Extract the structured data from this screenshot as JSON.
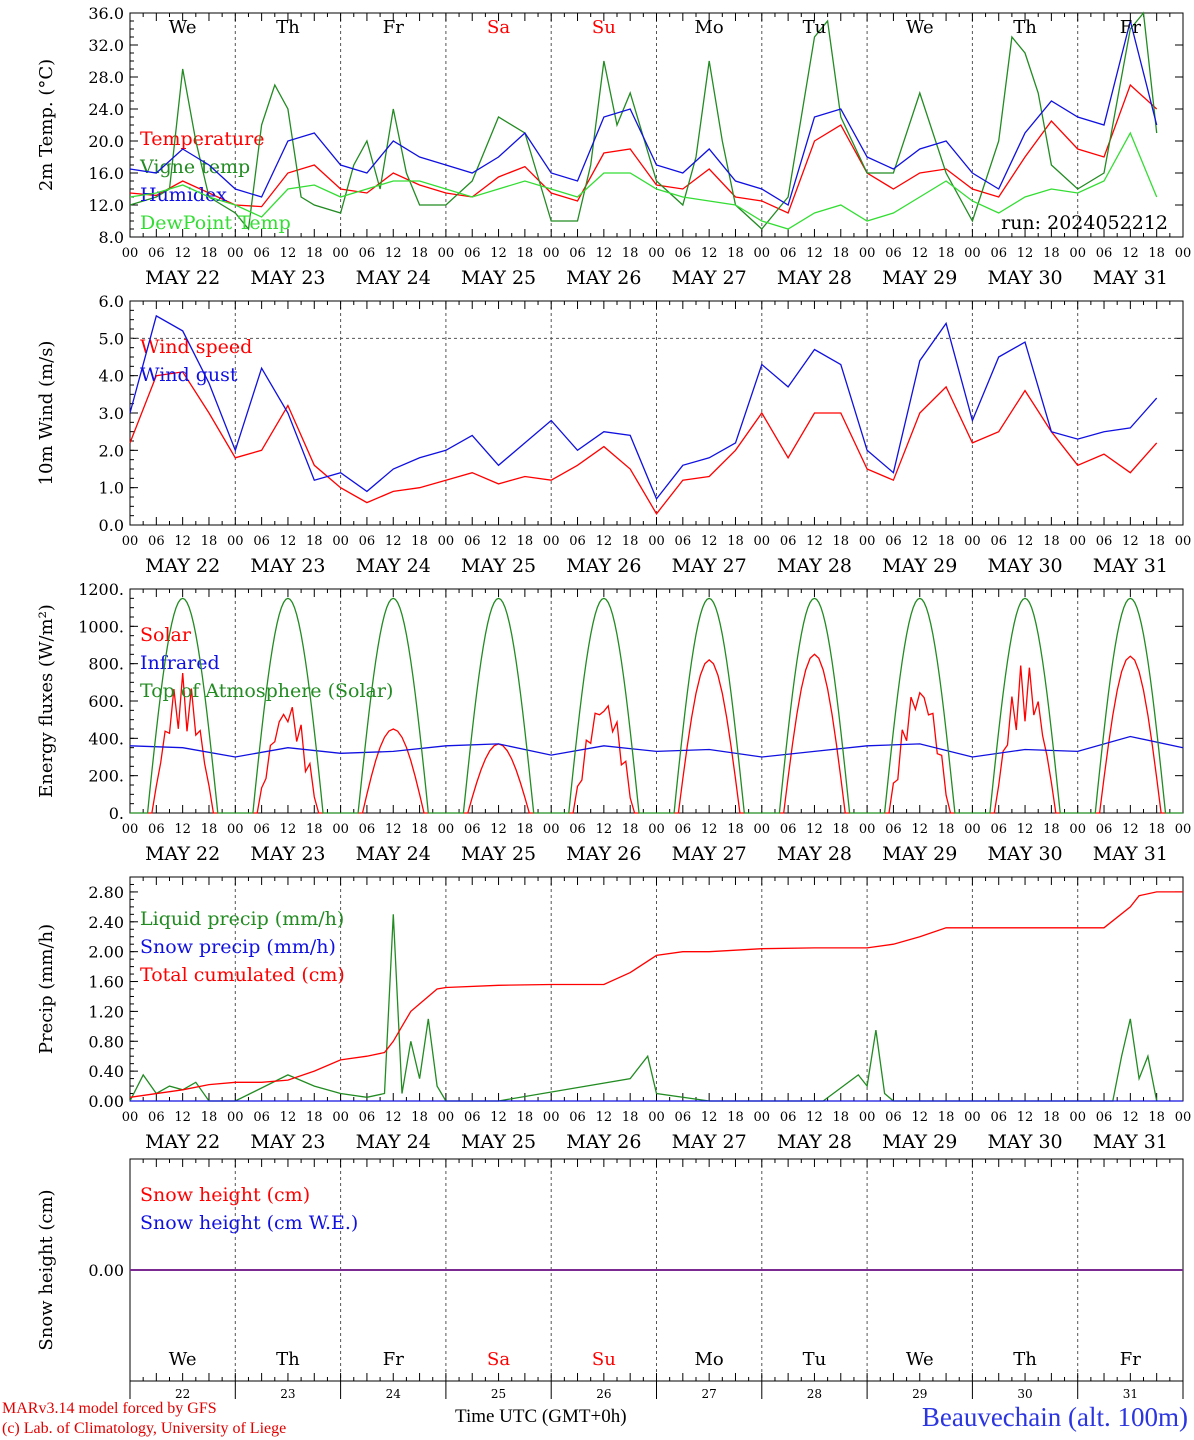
{
  "run_label": "run: 2024052212",
  "bottom": {
    "credit_line1": "MARv3.14 model forced by GFS",
    "credit_line2": "(c) Lab. of Climatology, University of Liege",
    "xlabel": "Time UTC (GMT+0h)",
    "station": "Beauvechain (alt. 100m)",
    "day_numbers": [
      "22",
      "23",
      "24",
      "25",
      "26",
      "27",
      "28",
      "29",
      "30",
      "31"
    ]
  },
  "days": {
    "weekday_labels": [
      "We",
      "Th",
      "Fr",
      "Sa",
      "Su",
      "Mo",
      "Tu",
      "We",
      "Th",
      "Fr"
    ],
    "weekend_flags": [
      false,
      false,
      false,
      true,
      true,
      false,
      false,
      false,
      false,
      false
    ],
    "date_labels": [
      "MAY 22",
      "MAY 23",
      "MAY 24",
      "MAY 25",
      "MAY 26",
      "MAY 27",
      "MAY 28",
      "MAY 29",
      "MAY 30",
      "MAY 31"
    ],
    "hour_ticks": [
      "00",
      "06",
      "12",
      "18"
    ],
    "final_tick": "00"
  },
  "colors": {
    "red": "#ff0000",
    "green": "#228b22",
    "blue": "#1010e0",
    "lightgreen": "#33dd33",
    "purple": "#7a2a90",
    "weekend": "#ff0000"
  },
  "chart_data": [
    {
      "type": "line",
      "ylabel": "2m Temp. (°C)",
      "ylim": [
        8,
        36
      ],
      "yticks": [
        "8.0",
        "12.0",
        "16.0",
        "20.0",
        "24.0",
        "28.0",
        "32.0",
        "36.0"
      ],
      "x_unit": "hours since 2024-05-22 00 UTC",
      "series": [
        {
          "name": "Temperature",
          "color": "red",
          "x": [
            0,
            6,
            12,
            18,
            24,
            30,
            36,
            42,
            48,
            54,
            60,
            66,
            72,
            78,
            84,
            90,
            96,
            102,
            108,
            114,
            120,
            126,
            132,
            138,
            144,
            150,
            156,
            162,
            168,
            174,
            180,
            186,
            192,
            198,
            204,
            210,
            216,
            222,
            228,
            234
          ],
          "values": [
            13.5,
            13.2,
            15,
            13.5,
            12,
            11.8,
            16,
            17,
            14,
            13.5,
            16,
            14.5,
            13.5,
            13,
            15.5,
            16.8,
            13.5,
            12.5,
            18.5,
            19,
            14.5,
            14,
            16.5,
            13,
            12.5,
            11,
            20,
            22,
            16,
            14,
            16,
            16.5,
            14,
            13,
            18,
            22.5,
            19,
            18,
            27,
            24
          ]
        },
        {
          "name": "Vigne temp",
          "color": "green",
          "x": [
            0,
            6,
            9,
            12,
            15,
            18,
            24,
            27,
            30,
            33,
            36,
            39,
            42,
            48,
            51,
            54,
            57,
            60,
            63,
            66,
            72,
            78,
            84,
            90,
            96,
            102,
            105,
            108,
            111,
            114,
            120,
            126,
            129,
            132,
            135,
            138,
            144,
            150,
            156,
            159,
            162,
            168,
            174,
            180,
            186,
            192,
            198,
            201,
            204,
            207,
            210,
            216,
            222,
            228,
            231,
            234
          ],
          "values": [
            12,
            13,
            14,
            29,
            20,
            13,
            11,
            9,
            22,
            27,
            24,
            13,
            12,
            11,
            17,
            20,
            14,
            24,
            16,
            12,
            12,
            15,
            23,
            21,
            10,
            10,
            17,
            30,
            22,
            26,
            15,
            12,
            18,
            30,
            20,
            12,
            9,
            13,
            33,
            35,
            23,
            16,
            16,
            26,
            16,
            10,
            20,
            33,
            31,
            26,
            17,
            14,
            16,
            34,
            36,
            21
          ]
        },
        {
          "name": "Humidex",
          "color": "blue",
          "x": [
            0,
            6,
            12,
            18,
            24,
            30,
            36,
            42,
            48,
            54,
            60,
            66,
            72,
            78,
            84,
            90,
            96,
            102,
            108,
            114,
            120,
            126,
            132,
            138,
            144,
            150,
            156,
            162,
            168,
            174,
            180,
            186,
            192,
            198,
            204,
            210,
            216,
            222,
            228,
            234
          ],
          "values": [
            16.5,
            16,
            19,
            17,
            14,
            13,
            20,
            21,
            17,
            16,
            20,
            18,
            17,
            16,
            18,
            21,
            16,
            15,
            23,
            24,
            17,
            16,
            19,
            15,
            14,
            12,
            23,
            24,
            18,
            16.5,
            19,
            20,
            16,
            14,
            21,
            25,
            23,
            22,
            35,
            22
          ]
        },
        {
          "name": "DewPoint Temp",
          "color": "lightgreen",
          "x": [
            0,
            6,
            12,
            18,
            24,
            30,
            36,
            42,
            48,
            54,
            60,
            66,
            72,
            78,
            84,
            90,
            96,
            102,
            108,
            114,
            120,
            126,
            132,
            138,
            144,
            150,
            156,
            162,
            168,
            174,
            180,
            186,
            192,
            198,
            204,
            210,
            216,
            222,
            228,
            234
          ],
          "values": [
            13,
            13.5,
            14.5,
            13,
            12,
            10.5,
            14,
            14.5,
            13,
            14,
            15,
            15,
            14,
            13,
            14,
            15,
            14,
            13,
            16,
            16,
            14,
            13,
            12.5,
            12,
            10,
            9,
            11,
            12,
            10,
            11,
            13,
            15,
            12.5,
            11,
            13,
            14,
            13.5,
            15,
            21,
            13
          ]
        }
      ]
    },
    {
      "type": "line",
      "ylabel": "10m Wind (m/s)",
      "ylim": [
        0,
        6
      ],
      "yticks": [
        "0.0",
        "1.0",
        "2.0",
        "3.0",
        "4.0",
        "5.0",
        "6.0"
      ],
      "dashed_reference": 5,
      "series": [
        {
          "name": "Wind speed",
          "color": "red",
          "x": [
            0,
            6,
            12,
            18,
            24,
            30,
            36,
            42,
            48,
            54,
            60,
            66,
            72,
            78,
            84,
            90,
            96,
            102,
            108,
            114,
            120,
            126,
            132,
            138,
            144,
            150,
            156,
            162,
            168,
            174,
            180,
            186,
            192,
            198,
            204,
            210,
            216,
            222,
            228,
            234
          ],
          "values": [
            2.2,
            4,
            4.1,
            3,
            1.8,
            2,
            3.2,
            1.6,
            1,
            0.6,
            0.9,
            1,
            1.2,
            1.4,
            1.1,
            1.3,
            1.2,
            1.6,
            2.1,
            1.5,
            0.3,
            1.2,
            1.3,
            2,
            3,
            1.8,
            3,
            3,
            1.5,
            1.2,
            3,
            3.7,
            2.2,
            2.5,
            3.6,
            2.5,
            1.6,
            1.9,
            1.4,
            2.2
          ]
        },
        {
          "name": "Wind gust",
          "color": "blue",
          "x": [
            0,
            6,
            12,
            18,
            24,
            30,
            36,
            42,
            48,
            54,
            60,
            66,
            72,
            78,
            84,
            90,
            96,
            102,
            108,
            114,
            120,
            126,
            132,
            138,
            144,
            150,
            156,
            162,
            168,
            174,
            180,
            186,
            192,
            198,
            204,
            210,
            216,
            222,
            228,
            234
          ],
          "values": [
            3,
            5.6,
            5.2,
            3.8,
            2,
            4.2,
            3,
            1.2,
            1.4,
            0.9,
            1.5,
            1.8,
            2,
            2.4,
            1.6,
            2.2,
            2.8,
            2,
            2.5,
            2.4,
            0.7,
            1.6,
            1.8,
            2.2,
            4.3,
            3.7,
            4.7,
            4.3,
            2,
            1.4,
            4.4,
            5.4,
            2.8,
            4.5,
            4.9,
            2.5,
            2.3,
            2.5,
            2.6,
            3.4
          ]
        }
      ]
    },
    {
      "type": "line",
      "ylabel": "Energy fluxes (W/m²)",
      "ylim": [
        0,
        1200
      ],
      "yticks": [
        "0.",
        "200.",
        "400.",
        "600.",
        "800.",
        "1000.",
        "1200."
      ],
      "series": [
        {
          "name": "Solar",
          "color": "red",
          "daily_peaks": [
            750,
            610,
            450,
            370,
            640,
            820,
            850,
            720,
            810,
            840
          ]
        },
        {
          "name": "Infrared",
          "color": "blue",
          "x": [
            0,
            12,
            24,
            36,
            48,
            60,
            72,
            84,
            96,
            108,
            120,
            132,
            144,
            156,
            168,
            180,
            192,
            204,
            216,
            228,
            240
          ],
          "values": [
            360,
            350,
            300,
            350,
            320,
            330,
            360,
            370,
            310,
            360,
            330,
            340,
            300,
            330,
            360,
            370,
            300,
            340,
            330,
            410,
            350
          ]
        },
        {
          "name": "Top of Atmosphere (Solar)",
          "color": "green",
          "daily_peak": 1150
        }
      ]
    },
    {
      "type": "line",
      "ylabel": "Precip (mm/h)",
      "ylim": [
        0,
        3
      ],
      "yticks": [
        "0.00",
        "0.40",
        "0.80",
        "1.20",
        "1.60",
        "2.00",
        "2.40",
        "2.80"
      ],
      "series": [
        {
          "name": "Liquid precip (mm/h)",
          "color": "green",
          "x": [
            0,
            3,
            6,
            9,
            12,
            15,
            18,
            24,
            36,
            42,
            48,
            54,
            58,
            60,
            62,
            64,
            66,
            68,
            70,
            72,
            84,
            114,
            118,
            120,
            132,
            158,
            166,
            168,
            170,
            172,
            174,
            224,
            226,
            228,
            230,
            232,
            234
          ],
          "values": [
            0,
            0.35,
            0.1,
            0.2,
            0.15,
            0.25,
            0,
            0,
            0.35,
            0.2,
            0.1,
            0.05,
            0.1,
            2.5,
            0.1,
            0.8,
            0.3,
            1.1,
            0.2,
            0,
            0,
            0.3,
            0.6,
            0.1,
            0,
            0,
            0.35,
            0.2,
            0.95,
            0.1,
            0,
            0,
            0.6,
            1.1,
            0.3,
            0.6,
            0
          ]
        },
        {
          "name": "Snow precip (mm/h)",
          "color": "blue",
          "x": [
            0,
            240
          ],
          "values": [
            0,
            0
          ]
        },
        {
          "name": "Total cumulated (cm)",
          "color": "red",
          "x": [
            0,
            12,
            18,
            24,
            30,
            36,
            42,
            48,
            54,
            58,
            60,
            62,
            64,
            66,
            68,
            70,
            72,
            84,
            96,
            108,
            114,
            120,
            126,
            132,
            144,
            156,
            168,
            174,
            180,
            186,
            192,
            204,
            216,
            222,
            228,
            230,
            234,
            240
          ],
          "values": [
            0.05,
            0.15,
            0.22,
            0.25,
            0.25,
            0.28,
            0.4,
            0.55,
            0.6,
            0.65,
            0.8,
            1.0,
            1.2,
            1.3,
            1.4,
            1.5,
            1.52,
            1.55,
            1.56,
            1.56,
            1.72,
            1.95,
            2,
            2,
            2.04,
            2.05,
            2.05,
            2.1,
            2.2,
            2.32,
            2.32,
            2.32,
            2.32,
            2.32,
            2.6,
            2.75,
            2.8,
            2.8
          ]
        }
      ]
    },
    {
      "type": "line",
      "ylabel": "Snow height (cm)",
      "ylim": [
        -1,
        1
      ],
      "yticks": [
        "0.00"
      ],
      "series": [
        {
          "name": "Snow height (cm)",
          "color": "red",
          "x": [
            0,
            240
          ],
          "values": [
            0,
            0
          ]
        },
        {
          "name": "Snow height (cm W.E.)",
          "color": "blue",
          "x": [
            0,
            240
          ],
          "values": [
            0,
            0
          ]
        }
      ]
    }
  ]
}
